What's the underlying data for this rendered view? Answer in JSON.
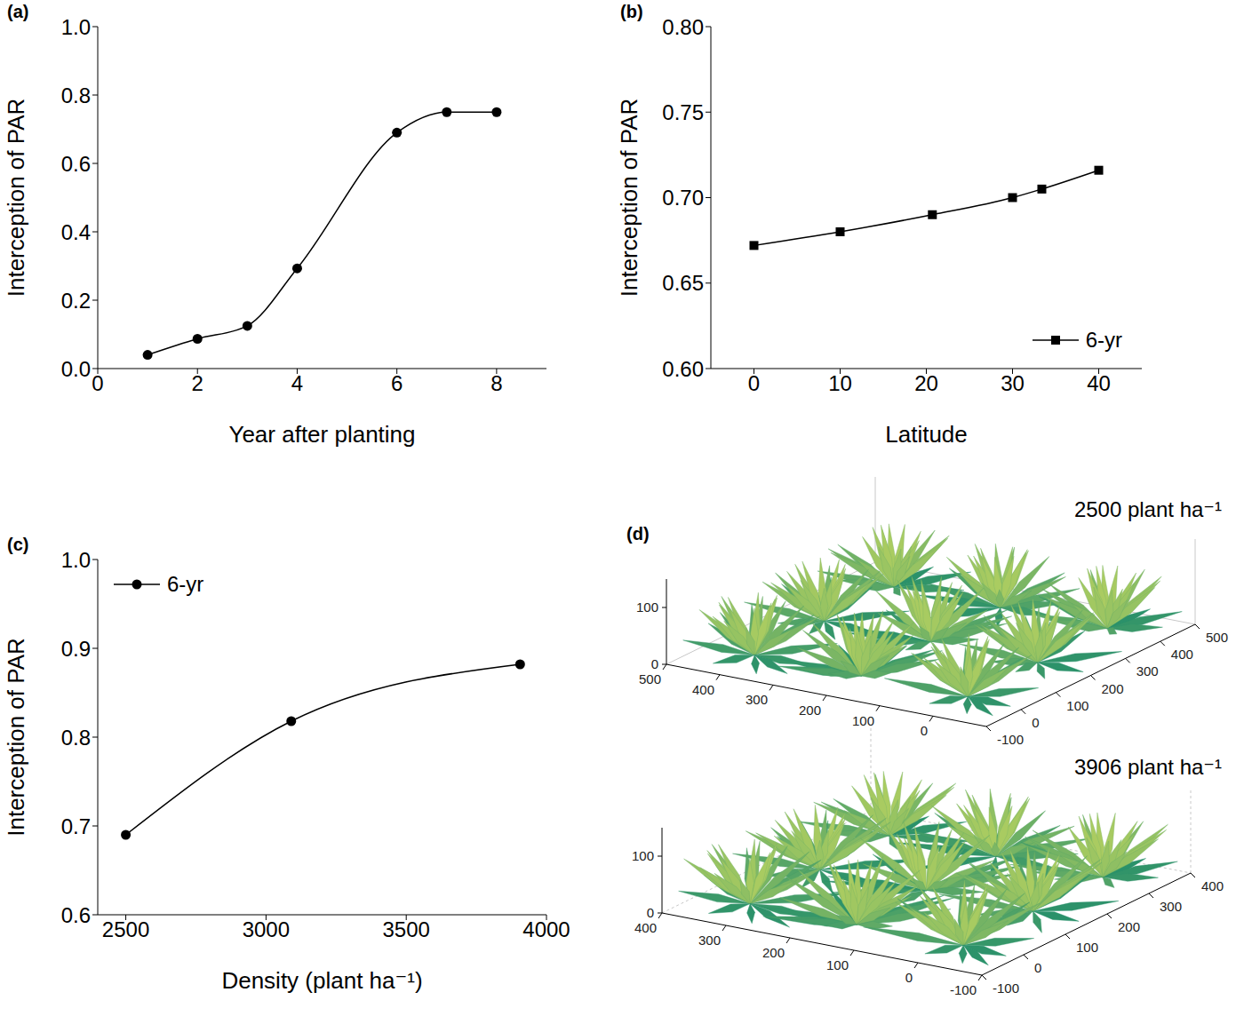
{
  "chart_data": [
    {
      "type": "line",
      "panel": "(a)",
      "xlabel": "Year after planting",
      "ylabel": "Interception of PAR",
      "x": [
        1,
        2,
        3,
        4,
        6,
        7,
        8
      ],
      "values": [
        0.04,
        0.087,
        0.125,
        0.293,
        0.69,
        0.75,
        0.75
      ],
      "color": "#000000",
      "marker": "circle",
      "line_style": "solid",
      "xlim": [
        0,
        9
      ],
      "xticks": [
        0,
        2,
        4,
        6,
        8
      ],
      "ylim": [
        0,
        1
      ],
      "yticks": [
        {
          "value": 0,
          "label": "0.0"
        },
        0.2,
        0.4,
        0.6,
        0.8,
        {
          "value": 1,
          "label": "1.0"
        }
      ]
    },
    {
      "type": "line",
      "panel": "(b)",
      "xlabel": "Latitude",
      "ylabel": "Interception of PAR",
      "x": [
        0,
        10,
        20.7,
        30,
        33.4,
        40
      ],
      "series": [
        {
          "name": "6-yr",
          "color": "#000000",
          "marker": "square",
          "values": [
            0.672,
            0.68,
            0.69,
            0.7,
            0.705,
            0.716
          ]
        }
      ],
      "legend": "lower right",
      "line_style": "solid",
      "xlim": [
        -5,
        45
      ],
      "xticks": [
        0,
        10,
        20,
        30,
        40
      ],
      "ylim": [
        0.6,
        0.8
      ],
      "yticks": [
        {
          "value": 0.6,
          "label": "0.60"
        },
        0.65,
        {
          "value": 0.7,
          "label": "0.70"
        },
        0.75,
        {
          "value": 0.8,
          "label": "0.80"
        }
      ]
    },
    {
      "type": "line",
      "panel": "(c)",
      "xlabel": "Density (plant ha⁻¹)",
      "ylabel": "Interception of PAR",
      "x": [
        2500,
        3090,
        3906
      ],
      "series": [
        {
          "name": "6-yr",
          "color": "#000000",
          "marker": "circle",
          "values": [
            0.69,
            0.818,
            0.882
          ]
        }
      ],
      "legend": "upper left",
      "line_style": "solid",
      "xlim": [
        2400,
        4000
      ],
      "xticks": [
        2500,
        3000,
        3500,
        4000
      ],
      "ylim": [
        0.6,
        1
      ],
      "yticks": [
        0.6,
        0.7,
        0.8,
        0.9,
        {
          "value": 1,
          "label": "1.0"
        }
      ]
    },
    {
      "type": "scene3d",
      "panel": "(d)",
      "scenes": [
        {
          "title": "2500 plant ha⁻¹",
          "xlim": [
            -100,
            500
          ],
          "ylim": [
            -100,
            500
          ],
          "zlim": [
            0,
            150
          ],
          "xticks": [
            0,
            100,
            200,
            300,
            400,
            500
          ],
          "yticks": [
            -100,
            0,
            100,
            200,
            300,
            400,
            500
          ],
          "zticks": [
            0,
            100
          ]
        },
        {
          "title": "3906 plant ha⁻¹",
          "xlim": [
            -100,
            400
          ],
          "ylim": [
            -100,
            400
          ],
          "zlim": [
            0,
            150
          ],
          "xticks": [
            -100,
            0,
            100,
            200,
            300,
            400
          ],
          "yticks": [
            -100,
            0,
            100,
            200,
            300,
            400
          ],
          "zticks": [
            0,
            100
          ]
        }
      ]
    }
  ]
}
